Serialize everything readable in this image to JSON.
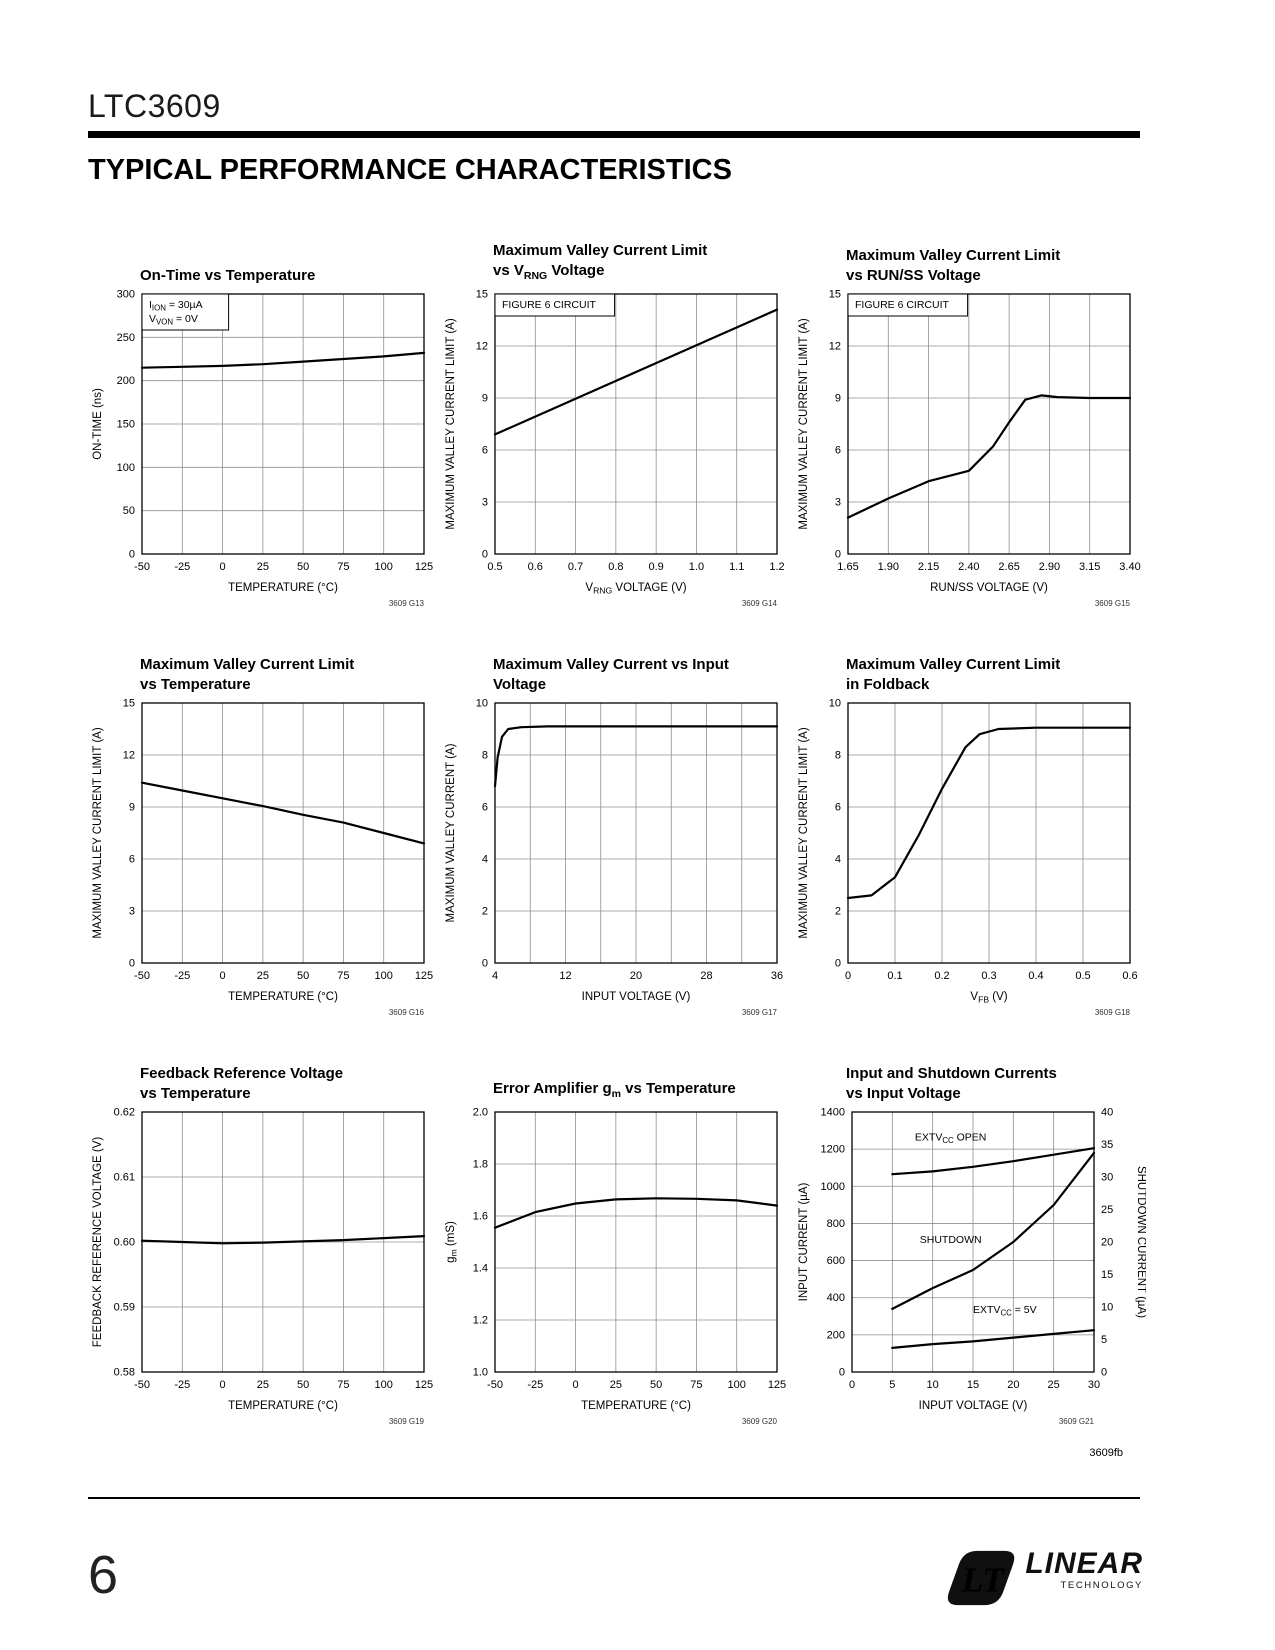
{
  "page": {
    "part_number": "LTC3609",
    "section_title": "TYPICAL PERFORMANCE CHARACTERISTICS",
    "footer_code": "3609fb",
    "page_number": "6",
    "logo_text": "LINEAR",
    "logo_sub": "TECHNOLOGY"
  },
  "charts": [
    {
      "name": "on-time-vs-temperature",
      "type": "line",
      "title": [
        "On-Time vs Temperature"
      ],
      "tag": "3609 G13",
      "xlabel": "TEMPERATURE (°C)",
      "ylabel": "ON-TIME (ns)",
      "xlim": [
        -50,
        125
      ],
      "ylim": [
        0,
        300
      ],
      "xticks": [
        -50,
        -25,
        0,
        25,
        50,
        75,
        100,
        125
      ],
      "yticks": [
        0,
        50,
        100,
        150,
        200,
        250,
        300
      ],
      "annotations": [
        {
          "lines": [
            "I_{ION} = 30µA",
            "V_{VON} = 0V"
          ],
          "fx": 0,
          "fy": 0,
          "box": true
        }
      ],
      "series": [
        {
          "name": "on-time",
          "x": [
            -50,
            -25,
            0,
            25,
            50,
            75,
            100,
            125
          ],
          "y": [
            215,
            216,
            217,
            219,
            222,
            225,
            228,
            232
          ]
        }
      ]
    },
    {
      "name": "valley-current-limit-vs-vrng",
      "type": "line",
      "title": [
        "Maximum Valley Current Limit",
        "vs V_{RNG} Voltage"
      ],
      "tag": "3609 G14",
      "xlabel": "V_{RNG} VOLTAGE (V)",
      "ylabel": "MAXIMUM VALLEY CURRENT LIMIT (A)",
      "xlim": [
        0.5,
        1.2
      ],
      "ylim": [
        0,
        15
      ],
      "xticks": [
        0.5,
        0.6,
        0.7,
        0.8,
        0.9,
        1.0,
        1.1,
        1.2
      ],
      "xtick_labels": [
        "0.5",
        "0.6",
        "0.7",
        "0.8",
        "0.9",
        "1.0",
        "1.1",
        "1.2"
      ],
      "yticks": [
        0,
        3,
        6,
        9,
        12,
        15
      ],
      "annotations": [
        {
          "lines": [
            "FIGURE 6 CIRCUIT"
          ],
          "fx": 0,
          "fy": 0,
          "box": true
        }
      ],
      "series": [
        {
          "name": "limit",
          "x": [
            0.5,
            0.85,
            1.2
          ],
          "y": [
            6.9,
            10.5,
            14.1
          ]
        }
      ]
    },
    {
      "name": "valley-current-limit-vs-runss",
      "type": "line",
      "title": [
        "Maximum Valley Current Limit",
        "vs RUN/SS Voltage"
      ],
      "tag": "3609 G15",
      "xlabel": "RUN/SS VOLTAGE (V)",
      "ylabel": "MAXIMUM VALLEY CURRENT LIMIT (A)",
      "xlim": [
        1.65,
        3.4
      ],
      "ylim": [
        0,
        15
      ],
      "xticks": [
        1.65,
        1.9,
        2.15,
        2.4,
        2.65,
        2.9,
        3.15,
        3.4
      ],
      "xtick_labels": [
        "1.65",
        "1.90",
        "2.15",
        "2.40",
        "2.65",
        "2.90",
        "3.15",
        "3.40"
      ],
      "yticks": [
        0,
        3,
        6,
        9,
        12,
        15
      ],
      "annotations": [
        {
          "lines": [
            "FIGURE 6 CIRCUIT"
          ],
          "fx": 0,
          "fy": 0,
          "box": true
        }
      ],
      "series": [
        {
          "name": "limit",
          "x": [
            1.65,
            1.9,
            2.15,
            2.4,
            2.55,
            2.65,
            2.75,
            2.85,
            2.95,
            3.15,
            3.4
          ],
          "y": [
            2.1,
            3.2,
            4.2,
            4.8,
            6.2,
            7.6,
            8.9,
            9.15,
            9.05,
            9.0,
            9.0
          ]
        }
      ]
    },
    {
      "name": "valley-current-limit-vs-temperature",
      "type": "line",
      "title": [
        "Maximum Valley Current Limit",
        "vs Temperature"
      ],
      "tag": "3609 G16",
      "xlabel": "TEMPERATURE (°C)",
      "ylabel": "MAXIMUM VALLEY CURRENT LIMIT (A)",
      "xlim": [
        -50,
        125
      ],
      "ylim": [
        0,
        15
      ],
      "xticks": [
        -50,
        -25,
        0,
        25,
        50,
        75,
        100,
        125
      ],
      "yticks": [
        0,
        3,
        6,
        9,
        12,
        15
      ],
      "annotations": [],
      "series": [
        {
          "name": "limit",
          "x": [
            -50,
            -25,
            0,
            25,
            50,
            75,
            100,
            125
          ],
          "y": [
            10.4,
            9.95,
            9.5,
            9.05,
            8.55,
            8.1,
            7.5,
            6.9
          ]
        }
      ]
    },
    {
      "name": "valley-current-vs-input-voltage",
      "type": "line",
      "title": [
        "Maximum Valley Current vs Input",
        "Voltage"
      ],
      "tag": "3609 G17",
      "xlabel": "INPUT VOLTAGE (V)",
      "ylabel": "MAXIMUM VALLEY CURRENT (A)",
      "xlim": [
        4,
        36
      ],
      "ylim": [
        0,
        10
      ],
      "xticks": [
        4,
        12,
        20,
        28,
        36
      ],
      "xgrid": [
        8,
        12,
        16,
        20,
        24,
        28,
        32
      ],
      "yticks": [
        0,
        2,
        4,
        6,
        8,
        10
      ],
      "annotations": [],
      "series": [
        {
          "name": "current",
          "x": [
            4,
            4.3,
            4.8,
            5.5,
            7,
            10,
            16,
            24,
            30,
            36
          ],
          "y": [
            6.8,
            7.9,
            8.7,
            9.0,
            9.07,
            9.1,
            9.1,
            9.1,
            9.1,
            9.1
          ]
        }
      ]
    },
    {
      "name": "valley-current-limit-foldback",
      "type": "line",
      "title": [
        "Maximum Valley Current Limit",
        "in Foldback"
      ],
      "tag": "3609 G18",
      "xlabel": "V_{FB} (V)",
      "ylabel": "MAXIMUM VALLEY CURRENT LIMIT (A)",
      "xlim": [
        0,
        0.6
      ],
      "ylim": [
        0,
        10
      ],
      "xticks": [
        0,
        0.1,
        0.2,
        0.3,
        0.4,
        0.5,
        0.6
      ],
      "yticks": [
        0,
        2,
        4,
        6,
        8,
        10
      ],
      "annotations": [],
      "series": [
        {
          "name": "limit",
          "x": [
            0,
            0.05,
            0.1,
            0.15,
            0.2,
            0.25,
            0.28,
            0.32,
            0.4,
            0.5,
            0.6
          ],
          "y": [
            2.5,
            2.6,
            3.3,
            4.9,
            6.7,
            8.3,
            8.8,
            9.0,
            9.05,
            9.05,
            9.05
          ]
        }
      ]
    },
    {
      "name": "feedback-reference-voltage-vs-temperature",
      "type": "line",
      "title": [
        "Feedback Reference Voltage",
        "vs Temperature"
      ],
      "tag": "3609 G19",
      "xlabel": "TEMPERATURE (°C)",
      "ylabel": "FEEDBACK REFERENCE VOLTAGE (V)",
      "xlim": [
        -50,
        125
      ],
      "ylim": [
        0.58,
        0.62
      ],
      "xticks": [
        -50,
        -25,
        0,
        25,
        50,
        75,
        100,
        125
      ],
      "yticks": [
        0.58,
        0.59,
        0.6,
        0.61,
        0.62
      ],
      "ytick_labels": [
        "0.58",
        "0.59",
        "0.60",
        "0.61",
        "0.62"
      ],
      "annotations": [],
      "series": [
        {
          "name": "vref",
          "x": [
            -50,
            -25,
            0,
            25,
            50,
            75,
            100,
            125
          ],
          "y": [
            0.6002,
            0.6,
            0.5998,
            0.5999,
            0.6001,
            0.6003,
            0.6006,
            0.6009
          ]
        }
      ]
    },
    {
      "name": "error-amplifier-gm-vs-temperature",
      "type": "line",
      "title": [
        "Error Amplifier g_{m} vs Temperature"
      ],
      "tag": "3609 G20",
      "xlabel": "TEMPERATURE (°C)",
      "ylabel": "g_{m} (mS)",
      "xlim": [
        -50,
        125
      ],
      "ylim": [
        1.0,
        2.0
      ],
      "xticks": [
        -50,
        -25,
        0,
        25,
        50,
        75,
        100,
        125
      ],
      "yticks": [
        1.0,
        1.2,
        1.4,
        1.6,
        1.8,
        2.0
      ],
      "ytick_labels": [
        "1.0",
        "1.2",
        "1.4",
        "1.6",
        "1.8",
        "2.0"
      ],
      "annotations": [],
      "series": [
        {
          "name": "gm",
          "x": [
            -50,
            -25,
            0,
            25,
            50,
            75,
            100,
            125
          ],
          "y": [
            1.555,
            1.615,
            1.648,
            1.664,
            1.668,
            1.666,
            1.66,
            1.64
          ]
        }
      ]
    },
    {
      "name": "input-shutdown-currents-vs-input-voltage",
      "type": "line",
      "title": [
        "Input and Shutdown Currents",
        "vs Input Voltage"
      ],
      "tag": "3609 G21",
      "ml": 58,
      "xlabel": "INPUT VOLTAGE (V)",
      "ylabel": "INPUT CURRENT (µA)",
      "ylabel_right": "SHUTDOWN CURRENT (µA)",
      "xlim": [
        0,
        30
      ],
      "ylim": [
        0,
        1400
      ],
      "ylim_right": [
        0,
        40
      ],
      "xticks": [
        0,
        5,
        10,
        15,
        20,
        25,
        30
      ],
      "yticks": [
        0,
        200,
        400,
        600,
        800,
        1000,
        1200,
        1400
      ],
      "yticks_right": [
        0,
        5,
        10,
        15,
        20,
        25,
        30,
        35,
        40
      ],
      "annotations": [
        {
          "lines": [
            "EXTV_{CC} OPEN"
          ],
          "fx": 0.26,
          "fy": 0.055
        },
        {
          "lines": [
            "SHUTDOWN"
          ],
          "fx": 0.28,
          "fy": 0.45
        },
        {
          "lines": [
            "EXTV_{CC} = 5V"
          ],
          "fx": 0.5,
          "fy": 0.72
        }
      ],
      "series": [
        {
          "name": "extvcc-open",
          "x": [
            5,
            10,
            15,
            20,
            25,
            30
          ],
          "y": [
            1065,
            1080,
            1105,
            1135,
            1170,
            1205
          ]
        },
        {
          "name": "shutdown",
          "axis": "right",
          "x": [
            5,
            10,
            15,
            20,
            25,
            30
          ],
          "y": [
            9.7,
            12.9,
            15.7,
            20,
            25.7,
            33.7
          ]
        },
        {
          "name": "extvcc-5v",
          "x": [
            5,
            10,
            15,
            20,
            25,
            30
          ],
          "y": [
            130,
            150,
            165,
            185,
            205,
            225
          ]
        }
      ]
    }
  ]
}
